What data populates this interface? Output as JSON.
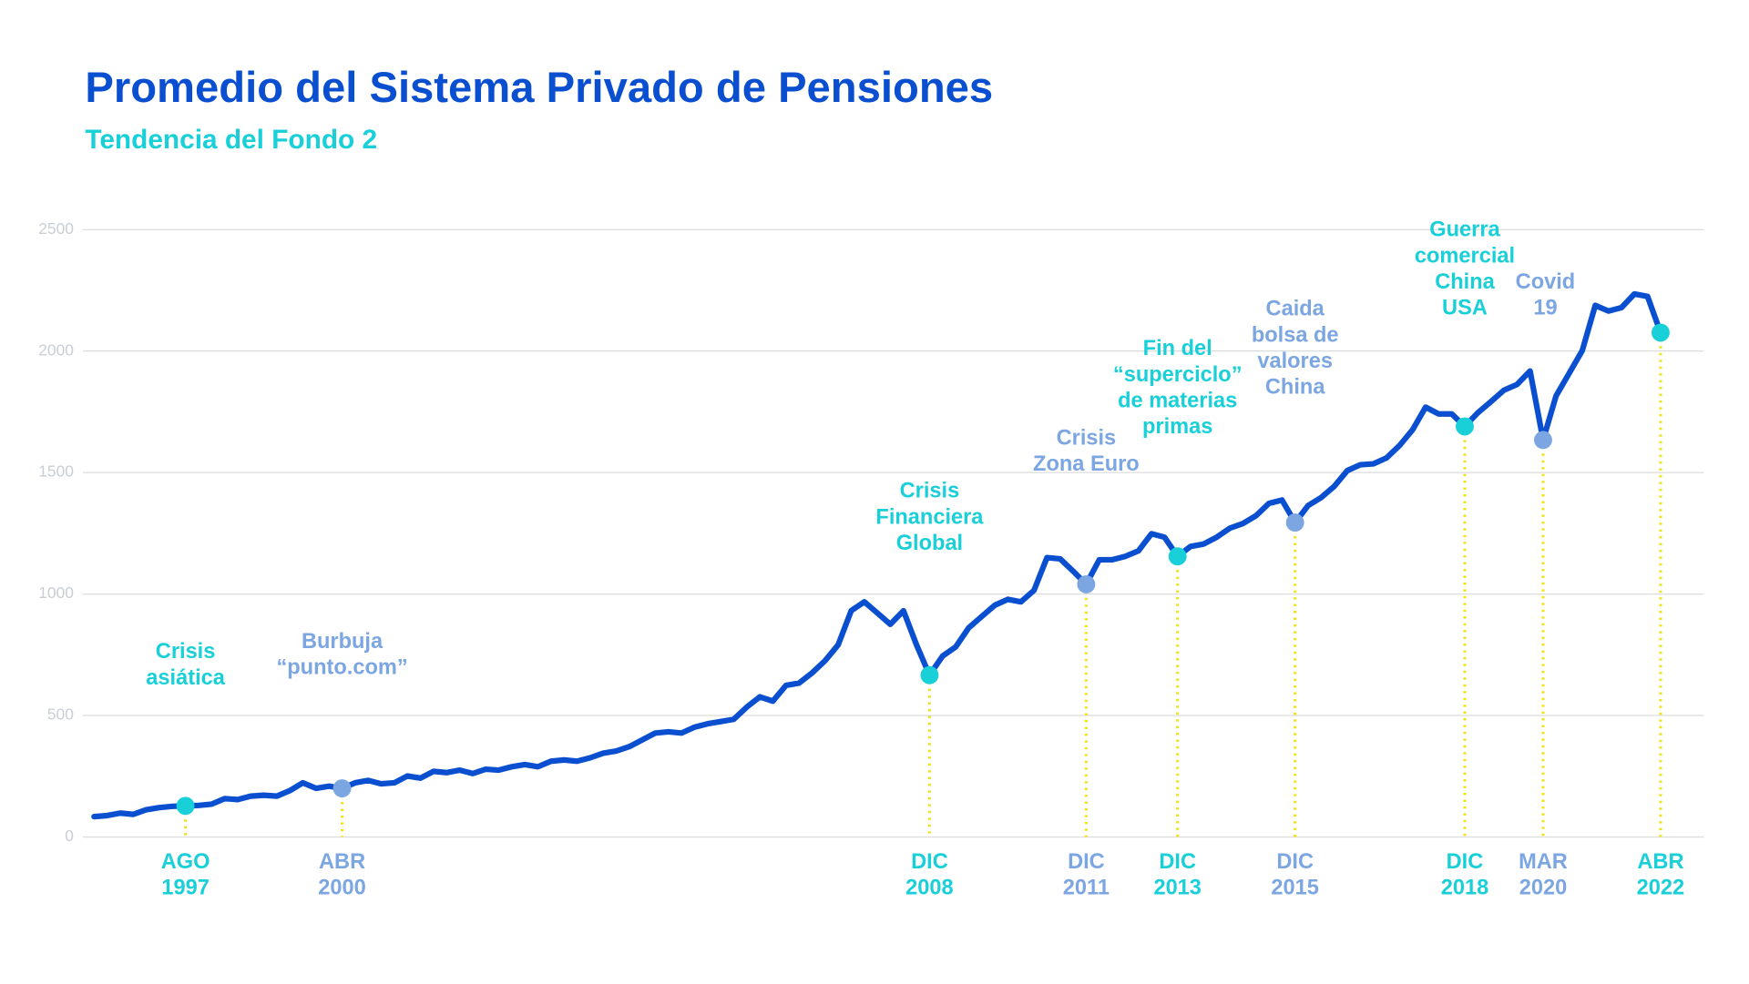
{
  "chart_data": {
    "type": "line",
    "title": "Promedio del Sistema Privado de Pensiones",
    "subtitle": "Tendencia del Fondo 2",
    "categories": [
      null,
      null,
      null,
      null,
      null,
      null,
      null,
      "AGO 1997",
      null,
      null,
      null,
      null,
      null,
      null,
      null,
      null,
      null,
      null,
      null,
      "ABR 2000",
      null,
      null,
      null,
      null,
      null,
      null,
      null,
      null,
      null,
      null,
      null,
      null,
      null,
      null,
      null,
      null,
      null,
      null,
      null,
      null,
      null,
      null,
      null,
      null,
      null,
      null,
      null,
      null,
      null,
      null,
      null,
      null,
      null,
      null,
      null,
      null,
      null,
      null,
      null,
      null,
      null,
      null,
      null,
      null,
      "DIC 2008",
      null,
      null,
      null,
      null,
      null,
      null,
      null,
      null,
      null,
      null,
      null,
      "DIC 2011",
      null,
      null,
      null,
      null,
      null,
      null,
      "DIC 2013",
      null,
      null,
      null,
      null,
      null,
      null,
      null,
      null,
      "DIC 2015",
      null,
      null,
      null,
      null,
      null,
      null,
      null,
      null,
      null,
      null,
      null,
      null,
      "DIC 2018",
      null,
      null,
      null,
      null,
      null,
      "MAR 2020",
      null,
      null,
      null,
      null,
      null,
      null,
      null,
      null,
      "ABR 2022"
    ],
    "series": [
      {
        "color": "#0b4fd1",
        "values": [
          84,
          88,
          98,
          93,
          112,
          121,
          126,
          128,
          130,
          135,
          158,
          154,
          168,
          172,
          168,
          191,
          223,
          200,
          209,
          200,
          223,
          233,
          219,
          223,
          251,
          242,
          270,
          265,
          275,
          261,
          279,
          275,
          289,
          298,
          289,
          312,
          317,
          312,
          326,
          345,
          354,
          372,
          400,
          428,
          433,
          428,
          452,
          466,
          475,
          484,
          535,
          577,
          559,
          624,
          633,
          675,
          726,
          791,
          931,
          968,
          922,
          875,
          931,
          791,
          666,
          745,
          782,
          861,
          908,
          954,
          978,
          968,
          1015,
          1150,
          1145,
          1094,
          1040,
          1141,
          1141,
          1155,
          1178,
          1248,
          1234,
          1155,
          1196,
          1206,
          1234,
          1271,
          1290,
          1322,
          1373,
          1387,
          1294,
          1364,
          1397,
          1443,
          1508,
          1532,
          1536,
          1560,
          1611,
          1676,
          1769,
          1741,
          1741,
          1690,
          1746,
          1792,
          1839,
          1862,
          1918,
          1634,
          1816,
          1909,
          2002,
          2188,
          2165,
          2179,
          2235,
          2225,
          2076
        ]
      }
    ],
    "ylim": [
      0,
      2500
    ],
    "yticks": [
      0,
      500,
      1000,
      1500,
      2000,
      2500
    ],
    "grid": true,
    "events": [
      {
        "date": "AGO 1997",
        "text": [
          "Crisis",
          "asiática"
        ],
        "color": "#19cfd8"
      },
      {
        "date": "ABR 2000",
        "text": [
          "Burbuja",
          "“punto.com”"
        ],
        "color": "#7ca6e2"
      },
      {
        "date": "DIC 2008",
        "text": [
          "Crisis",
          "Financiera",
          "Global"
        ],
        "color": "#19cfd8"
      },
      {
        "date": "DIC 2011",
        "text": [
          "Crisis",
          "Zona Euro"
        ],
        "color": "#7ca6e2"
      },
      {
        "date": "DIC 2013",
        "text": [
          "Fin del",
          "“superciclo”",
          "de materias",
          "primas"
        ],
        "color": "#19cfd8"
      },
      {
        "date": "DIC 2015",
        "text": [
          "Caida",
          "bolsa de",
          "valores",
          "China"
        ],
        "color": "#7ca6e2"
      },
      {
        "date": "DIC 2018",
        "text": [
          "Guerra",
          "comercial",
          "China",
          "USA"
        ],
        "color": "#19cfd8"
      },
      {
        "date": "MAR 2020",
        "text": [
          "Covid",
          "19"
        ],
        "color": "#7ca6e2"
      },
      {
        "date": "ABR 2022",
        "color": "#19cfd8"
      }
    ]
  }
}
